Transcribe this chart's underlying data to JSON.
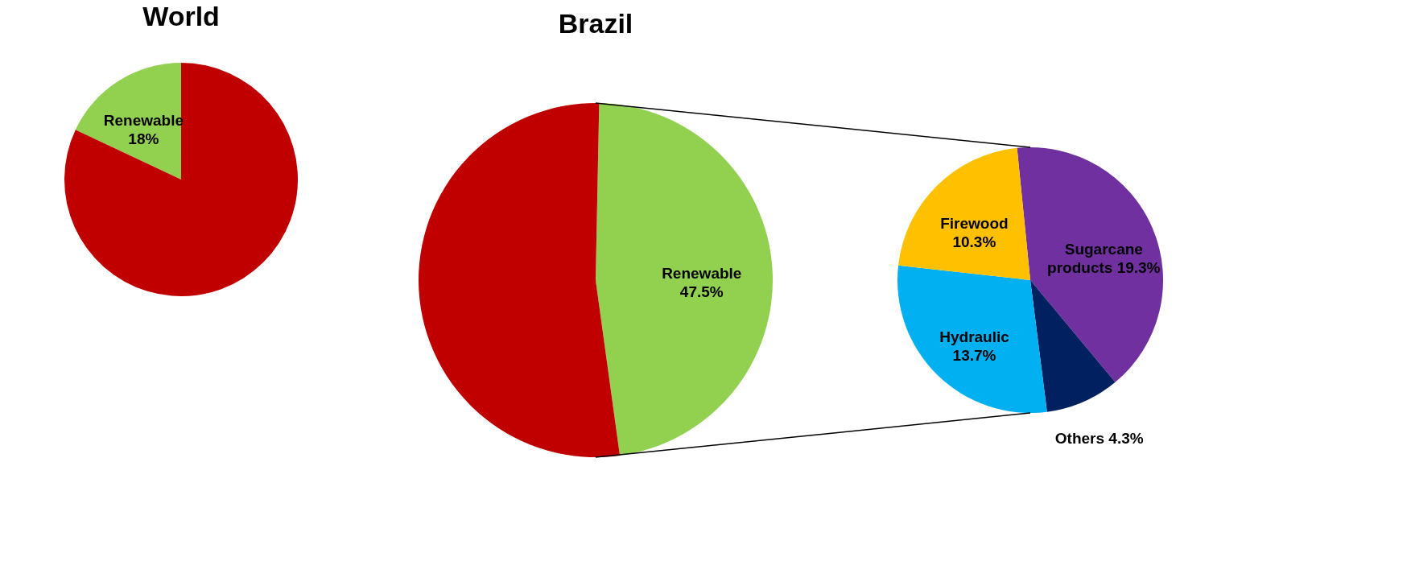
{
  "chart_data": [
    {
      "type": "pie",
      "title": "World",
      "categories": [
        "Renewable",
        null
      ],
      "values": [
        18,
        82
      ],
      "colors": [
        "#92d050",
        "#c00000"
      ],
      "value_labels": [
        "18%",
        null
      ]
    },
    {
      "type": "pie",
      "title": "Brazil",
      "categories": [
        "Renewable",
        null
      ],
      "values": [
        47.5,
        52.5
      ],
      "colors": [
        "#92d050",
        "#c00000"
      ],
      "value_labels": [
        "47.5%",
        null
      ]
    },
    {
      "type": "pie",
      "categories": [
        "Sugarcane products",
        "Others",
        "Hydraulic",
        "Firewood"
      ],
      "values": [
        19.3,
        4.3,
        13.7,
        10.3
      ],
      "colors": [
        "#7030a0",
        "#002060",
        "#00b0f0",
        "#ffc000"
      ],
      "value_labels": [
        "19.3%",
        "4.3%",
        "13.7%",
        "10.3%"
      ]
    }
  ]
}
